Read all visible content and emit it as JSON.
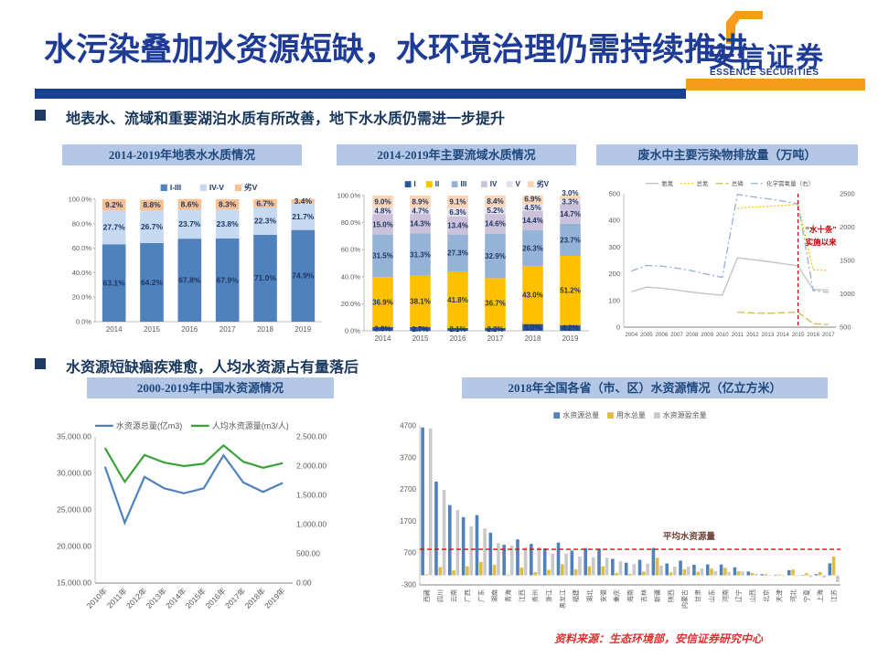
{
  "header": {
    "title": "水污染叠加水资源短缺，水环境治理仍需持续推进",
    "logo": {
      "cn": "安信证券",
      "en": "ESSENCE SECURITIES"
    }
  },
  "bullets": [
    "地表水、流域和重要湖泊水质有所改善，地下水水质仍需进一步提升",
    "水资源短缺痼疾难愈，人均水资源占有量落后"
  ],
  "footer": "资料来源：生态环境部，安信证券研究中心",
  "colors": {
    "accent_blue": "#17418E",
    "accent_orange": "#F89B1C",
    "title_blue": "#1E3C96",
    "panel_bg": "#B4C7E7",
    "source_red": "#E03131"
  },
  "chart_data": [
    {
      "kind": "stacked",
      "type": "bar",
      "title": "2014-2019年地表水水质情况",
      "categories": [
        "2014",
        "2015",
        "2016",
        "2017",
        "2018",
        "2019"
      ],
      "series": [
        {
          "name": "I-III",
          "color": "#4F81BD",
          "values": [
            63.1,
            64.2,
            67.8,
            67.9,
            71.0,
            74.9
          ]
        },
        {
          "name": "IV-V",
          "color": "#C5D9F1",
          "values": [
            27.7,
            26.7,
            23.7,
            23.8,
            22.3,
            21.7
          ]
        },
        {
          "name": "劣V",
          "color": "#FAC08F",
          "values": [
            9.2,
            8.8,
            8.6,
            8.3,
            6.7,
            3.4
          ]
        }
      ],
      "ylim": [
        0,
        100
      ],
      "yticks": [
        0,
        20,
        40,
        60,
        80,
        100
      ],
      "ytick_labels": [
        "0.0%",
        "20.0%",
        "40.0%",
        "60.0%",
        "80.0%",
        "100.0%"
      ],
      "label_color": "#1F3864"
    },
    {
      "kind": "stacked",
      "type": "bar",
      "title": "2014-2019年主要流域水质情况",
      "categories": [
        "2014",
        "2015",
        "2016",
        "2017",
        "2018",
        "2019"
      ],
      "series": [
        {
          "name": "I",
          "color": "#2C5698",
          "values": [
            2.8,
            2.7,
            2.1,
            2.2,
            5.0,
            4.2
          ]
        },
        {
          "name": "II",
          "color": "#FFC000",
          "values": [
            36.9,
            38.1,
            41.8,
            36.7,
            43.0,
            51.2
          ]
        },
        {
          "name": "III",
          "color": "#95B3D7",
          "values": [
            31.5,
            31.3,
            27.3,
            32.9,
            26.3,
            23.7
          ]
        },
        {
          "name": "IV",
          "color": "#CCC1DA",
          "values": [
            15.0,
            14.3,
            13.4,
            14.6,
            14.4,
            14.7
          ]
        },
        {
          "name": "V",
          "color": "#E6E0EC",
          "values": [
            4.8,
            4.7,
            6.3,
            5.2,
            4.5,
            3.3
          ]
        },
        {
          "name": "劣V",
          "color": "#FBD5B5",
          "values": [
            9.0,
            8.9,
            9.1,
            8.4,
            6.9,
            3.0
          ]
        }
      ],
      "ylim": [
        0,
        100
      ],
      "yticks": [
        0,
        20,
        40,
        60,
        80,
        100
      ],
      "ytick_labels": [
        "0.0%",
        "20.0%",
        "40.0%",
        "60.0%",
        "80.0%",
        "100.0%"
      ],
      "label_color": "#1F3864"
    },
    {
      "kind": "lines",
      "type": "line",
      "title": "废水中主要污染物排放量（万吨）",
      "x": [
        "2004",
        "2005",
        "2006",
        "2007",
        "2008",
        "2009",
        "2010",
        "2011",
        "2012",
        "2013",
        "2014",
        "2015",
        "2016",
        "2017"
      ],
      "left": {
        "min": 0,
        "max": 500,
        "ticks": [
          0,
          100,
          200,
          300,
          400,
          500
        ],
        "labels": [
          "0",
          "100",
          "200",
          "300",
          "400",
          "500"
        ]
      },
      "right": {
        "min": 500,
        "max": 2500,
        "ticks": [
          500,
          1000,
          1500,
          2000,
          2500
        ],
        "labels": [
          "500",
          "1000",
          "1500",
          "2000",
          "2500"
        ]
      },
      "series": [
        {
          "name": "氨氮",
          "axis": "left",
          "color": "#C0C0C0",
          "dash": "",
          "values": [
            133,
            150,
            146,
            139,
            131,
            125,
            120,
            260,
            253,
            246,
            238,
            230,
            141,
            139
          ]
        },
        {
          "name": "总氮",
          "axis": "left",
          "color": "#FFC000",
          "dash": "2 2",
          "values": [
            null,
            null,
            null,
            null,
            null,
            null,
            null,
            445,
            450,
            452,
            456,
            460,
            215,
            212
          ]
        },
        {
          "name": "总磷",
          "axis": "left",
          "color": "#D6B656",
          "dash": "8 3",
          "values": [
            null,
            null,
            null,
            null,
            null,
            null,
            null,
            56,
            53,
            52,
            54,
            56,
            13,
            10
          ]
        },
        {
          "name": "化学需氧量（右）",
          "axis": "right",
          "color": "#95AFD8",
          "dash": "8 3 2 3",
          "values": [
            1340,
            1425,
            1415,
            1385,
            1345,
            1295,
            1245,
            2490,
            2455,
            2425,
            2390,
            2345,
            1046,
            1022
          ]
        }
      ],
      "marker_line": {
        "x": "2015",
        "color": "#C00000",
        "labels": [
          "“水十条”",
          "实施以来"
        ]
      }
    },
    {
      "kind": "lines",
      "type": "line",
      "title": "2000-2019年中国水资源情况",
      "x": [
        "2010年",
        "2011年",
        "2012年",
        "2013年",
        "2014年",
        "2015年",
        "2016年",
        "2017年",
        "2018年",
        "2019年"
      ],
      "left": {
        "min": 15000,
        "max": 35000,
        "ticks": [
          15000,
          20000,
          25000,
          30000,
          35000
        ],
        "labels": [
          "15,000.00",
          "20,000.00",
          "25,000.00",
          "30,000.00",
          "35,000.00"
        ]
      },
      "right": {
        "min": 0,
        "max": 2500,
        "ticks": [
          0,
          500,
          1000,
          1500,
          2000,
          2500
        ],
        "labels": [
          "0.00",
          "500.00",
          "1,000.00",
          "1,500.00",
          "2,000.00",
          "2,500.00"
        ]
      },
      "series": [
        {
          "name": "水资源总量(亿m3)",
          "axis": "left",
          "color": "#4F81BD",
          "width": 2.2,
          "values": [
            30900,
            23250,
            29530,
            27960,
            27270,
            27960,
            32470,
            28760,
            27460,
            28700
          ]
        },
        {
          "name": "人均水资源量(m3/人)",
          "axis": "right",
          "color": "#3BA23B",
          "width": 2.2,
          "values": [
            2310,
            1730,
            2190,
            2060,
            2000,
            2040,
            2355,
            2075,
            1972,
            2050
          ]
        }
      ]
    },
    {
      "kind": "grouped",
      "type": "bar",
      "title": "2018年全国各省（市、区）水资源情况（亿立方米）",
      "categories": [
        "西藏",
        "四川",
        "云南",
        "广西",
        "广东",
        "湖南",
        "青海",
        "江西",
        "贵州",
        "浙江",
        "黑龙江",
        "福建",
        "湖北",
        "安徽",
        "重庆",
        "海南",
        "吉林",
        "新疆",
        "陕西",
        "内蒙古",
        "甘肃",
        "山东",
        "河南",
        "辽宁",
        "山西",
        "北京",
        "天津",
        "河北",
        "宁夏",
        "上海",
        "江苏"
      ],
      "series": [
        {
          "name": "水资源总量",
          "color": "#4F81BD",
          "values": [
            4650,
            2950,
            2210,
            1830,
            1895,
            1340,
            962,
            1130,
            990,
            850,
            1030,
            780,
            860,
            840,
            520,
            400,
            490,
            860,
            372,
            462,
            333,
            343,
            340,
            250,
            121,
            35,
            18,
            164,
            15,
            40,
            378
          ]
        },
        {
          "name": "用水总量",
          "color": "#E0BC3C",
          "values": [
            32,
            260,
            156,
            285,
            421,
            330,
            26,
            247,
            100,
            174,
            353,
            187,
            288,
            286,
            77,
            45,
            120,
            550,
            94,
            192,
            112,
            213,
            235,
            130,
            74,
            39,
            28,
            182,
            66,
            105,
            592
          ]
        },
        {
          "name": "水资源盈余量",
          "color": "#C9C9C9",
          "values": [
            4618,
            2690,
            2054,
            1545,
            1474,
            1010,
            936,
            883,
            890,
            676,
            677,
            593,
            572,
            554,
            443,
            355,
            370,
            310,
            278,
            270,
            221,
            130,
            105,
            120,
            47,
            -4,
            -10,
            -18,
            -51,
            -65,
            -214
          ]
        }
      ],
      "ylim": [
        -300,
        4700
      ],
      "yticks": [
        -300,
        700,
        1700,
        2700,
        3700,
        4700
      ],
      "avg_line": {
        "value": 820,
        "label": "平均水资源量",
        "color": "#FF0000",
        "label_color": "#6E4338"
      }
    }
  ]
}
